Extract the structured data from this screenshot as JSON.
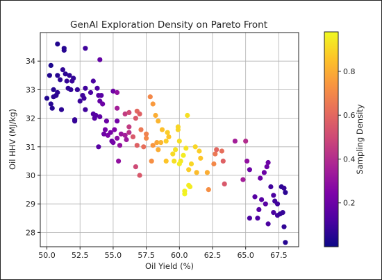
{
  "chart_data": {
    "type": "scatter",
    "title": "GenAI Exploration Density on Pareto Front",
    "xlabel": "Oil Yield (%)",
    "ylabel": "Oil HHV (MJ/kg)",
    "xlim": [
      49.5,
      69.0
    ],
    "ylim": [
      27.5,
      35.0
    ],
    "x_ticks": [
      "50.0",
      "52.5",
      "55.0",
      "57.5",
      "60.0",
      "62.5",
      "65.0",
      "67.5"
    ],
    "y_ticks": [
      "28",
      "29",
      "30",
      "31",
      "32",
      "33",
      "34"
    ],
    "grid": true,
    "colorbar": {
      "label": "Sampling Density",
      "colormap": "plasma",
      "range": [
        0.0,
        0.98
      ],
      "ticks": [
        "0.2",
        "0.4",
        "0.6",
        "0.8"
      ]
    },
    "points": [
      [
        50.8,
        34.6,
        0.04
      ],
      [
        51.3,
        34.45,
        0.05
      ],
      [
        51.3,
        34.38,
        0.05
      ],
      [
        52.9,
        34.45,
        0.1
      ],
      [
        54.0,
        34.05,
        0.18
      ],
      [
        50.3,
        33.85,
        0.03
      ],
      [
        50.2,
        33.5,
        0.04
      ],
      [
        50.8,
        33.5,
        0.05
      ],
      [
        51.2,
        33.7,
        0.07
      ],
      [
        51.4,
        33.55,
        0.06
      ],
      [
        51.7,
        33.5,
        0.07
      ],
      [
        51.0,
        33.35,
        0.06
      ],
      [
        51.5,
        33.3,
        0.08
      ],
      [
        52.0,
        33.4,
        0.07
      ],
      [
        51.9,
        33.3,
        0.09
      ],
      [
        53.5,
        33.3,
        0.12
      ],
      [
        53.8,
        33.05,
        0.13
      ],
      [
        50.5,
        33.0,
        0.05
      ],
      [
        51.6,
        33.05,
        0.07
      ],
      [
        51.8,
        33.0,
        0.07
      ],
      [
        52.3,
        33.0,
        0.08
      ],
      [
        52.9,
        33.05,
        0.1
      ],
      [
        53.3,
        32.9,
        0.12
      ],
      [
        55.0,
        32.95,
        0.2
      ],
      [
        55.3,
        32.9,
        0.3
      ],
      [
        50.0,
        32.7,
        0.04
      ],
      [
        50.3,
        32.5,
        0.05
      ],
      [
        50.4,
        32.35,
        0.05
      ],
      [
        50.7,
        32.8,
        0.06
      ],
      [
        50.8,
        32.9,
        0.06
      ],
      [
        50.5,
        32.75,
        0.06
      ],
      [
        51.1,
        32.3,
        0.06
      ],
      [
        52.5,
        32.6,
        0.09
      ],
      [
        52.7,
        32.8,
        0.1
      ],
      [
        52.8,
        32.7,
        0.1
      ],
      [
        53.9,
        32.8,
        0.15
      ],
      [
        54.1,
        32.8,
        0.15
      ],
      [
        54.0,
        32.6,
        0.18
      ],
      [
        54.2,
        32.5,
        0.2
      ],
      [
        52.9,
        32.3,
        0.1
      ],
      [
        53.5,
        32.15,
        0.14
      ],
      [
        53.6,
        32.0,
        0.15
      ],
      [
        53.7,
        32.1,
        0.15
      ],
      [
        54.0,
        32.05,
        0.17
      ],
      [
        52.1,
        31.95,
        0.08
      ],
      [
        52.1,
        31.9,
        0.08
      ],
      [
        54.5,
        31.9,
        0.2
      ],
      [
        55.3,
        31.9,
        0.22
      ],
      [
        55.3,
        32.35,
        0.35
      ],
      [
        55.9,
        32.15,
        0.45
      ],
      [
        56.2,
        32.2,
        0.5
      ],
      [
        56.7,
        32.0,
        0.55
      ],
      [
        56.8,
        32.25,
        0.6
      ],
      [
        57.0,
        32.15,
        0.58
      ],
      [
        57.8,
        32.75,
        0.7
      ],
      [
        58.0,
        32.5,
        0.75
      ],
      [
        58.2,
        32.1,
        0.8
      ],
      [
        58.4,
        31.9,
        0.82
      ],
      [
        58.7,
        31.6,
        0.85
      ],
      [
        59.1,
        31.5,
        0.88
      ],
      [
        59.2,
        31.35,
        0.86
      ],
      [
        59.0,
        31.2,
        0.88
      ],
      [
        58.3,
        31.15,
        0.78
      ],
      [
        57.5,
        31.3,
        0.7
      ],
      [
        57.1,
        31.6,
        0.65
      ],
      [
        57.5,
        31.45,
        0.68
      ],
      [
        58.0,
        31.05,
        0.74
      ],
      [
        57.3,
        31.0,
        0.62
      ],
      [
        56.8,
        31.05,
        0.58
      ],
      [
        56.5,
        31.35,
        0.55
      ],
      [
        56.2,
        31.7,
        0.45
      ],
      [
        56.2,
        31.5,
        0.42
      ],
      [
        55.6,
        31.45,
        0.32
      ],
      [
        55.9,
        31.4,
        0.35
      ],
      [
        56.0,
        31.25,
        0.33
      ],
      [
        54.6,
        31.4,
        0.24
      ],
      [
        54.8,
        31.5,
        0.23
      ],
      [
        55.1,
        31.6,
        0.25
      ],
      [
        54.4,
        31.6,
        0.22
      ],
      [
        54.3,
        31.45,
        0.2
      ],
      [
        54.9,
        31.2,
        0.2
      ],
      [
        55.0,
        31.15,
        0.22
      ],
      [
        55.3,
        31.3,
        0.28
      ],
      [
        55.5,
        31.05,
        0.3
      ],
      [
        55.4,
        30.5,
        0.3
      ],
      [
        59.9,
        31.6,
        0.9
      ],
      [
        59.9,
        31.7,
        0.9
      ],
      [
        60.0,
        31.2,
        0.92
      ],
      [
        59.7,
        30.9,
        0.93
      ],
      [
        59.5,
        30.75,
        0.91
      ],
      [
        59.6,
        30.5,
        0.92
      ],
      [
        60.1,
        30.5,
        0.94
      ],
      [
        60.3,
        30.7,
        0.95
      ],
      [
        60.5,
        30.95,
        0.93
      ],
      [
        60.0,
        30.4,
        0.95
      ],
      [
        60.9,
        30.4,
        0.9
      ],
      [
        60.7,
        30.2,
        0.88
      ],
      [
        60.4,
        29.35,
        0.97
      ],
      [
        60.4,
        29.45,
        0.96
      ],
      [
        60.7,
        29.65,
        0.95
      ],
      [
        60.8,
        29.6,
        0.95
      ],
      [
        59.0,
        30.5,
        0.86
      ],
      [
        58.4,
        30.9,
        0.8
      ],
      [
        58.6,
        31.15,
        0.82
      ],
      [
        57.9,
        30.5,
        0.72
      ],
      [
        60.6,
        32.1,
        0.92
      ],
      [
        61.2,
        31.0,
        0.9
      ],
      [
        61.5,
        30.85,
        0.88
      ],
      [
        61.6,
        30.6,
        0.86
      ],
      [
        61.3,
        30.1,
        0.84
      ],
      [
        62.1,
        30.1,
        0.8
      ],
      [
        62.6,
        30.4,
        0.7
      ],
      [
        62.7,
        30.75,
        0.65
      ],
      [
        62.8,
        30.9,
        0.6
      ],
      [
        63.2,
        30.85,
        0.62
      ],
      [
        63.3,
        30.5,
        0.58
      ],
      [
        63.4,
        29.7,
        0.55
      ],
      [
        62.2,
        29.5,
        0.72
      ],
      [
        57.0,
        30.0,
        0.55
      ],
      [
        56.7,
        30.3,
        0.5
      ],
      [
        64.2,
        31.2,
        0.35
      ],
      [
        65.0,
        31.2,
        0.4
      ],
      [
        65.1,
        30.5,
        0.3
      ],
      [
        64.8,
        29.85,
        0.35
      ],
      [
        65.3,
        30.2,
        0.2
      ],
      [
        66.1,
        29.9,
        0.2
      ],
      [
        66.6,
        30.3,
        0.2
      ],
      [
        66.7,
        30.45,
        0.2
      ],
      [
        66.4,
        30.1,
        0.2
      ],
      [
        65.7,
        29.25,
        0.15
      ],
      [
        65.3,
        28.5,
        0.12
      ],
      [
        65.9,
        28.5,
        0.13
      ],
      [
        66.0,
        28.8,
        0.15
      ],
      [
        66.5,
        29.0,
        0.15
      ],
      [
        66.2,
        29.15,
        0.15
      ],
      [
        66.9,
        29.6,
        0.1
      ],
      [
        67.1,
        29.3,
        0.12
      ],
      [
        67.2,
        29.1,
        0.1
      ],
      [
        67.1,
        28.7,
        0.12
      ],
      [
        67.4,
        28.6,
        0.1
      ],
      [
        67.6,
        28.65,
        0.08
      ],
      [
        67.8,
        28.7,
        0.08
      ],
      [
        67.7,
        29.6,
        0.06
      ],
      [
        67.9,
        29.55,
        0.08
      ],
      [
        68.0,
        29.4,
        0.06
      ],
      [
        67.9,
        28.2,
        0.07
      ],
      [
        68.0,
        27.65,
        0.05
      ],
      [
        66.7,
        28.3,
        0.12
      ],
      [
        67.4,
        29.0,
        0.1
      ],
      [
        53.9,
        31.0,
        0.15
      ]
    ]
  }
}
